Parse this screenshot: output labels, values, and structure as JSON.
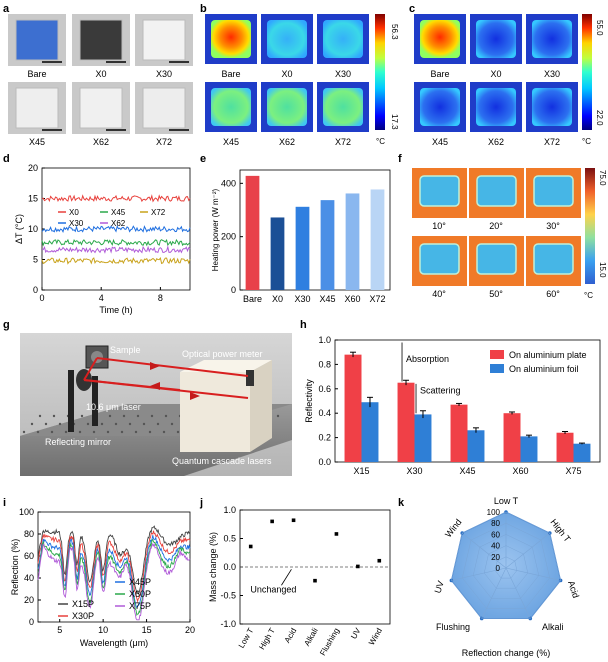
{
  "figure": {
    "panel_letters": [
      "a",
      "b",
      "c",
      "d",
      "e",
      "f",
      "g",
      "h",
      "i",
      "j",
      "k"
    ]
  },
  "panel_a": {
    "samples": [
      "Bare",
      "X0",
      "X30",
      "X45",
      "X62",
      "X72"
    ]
  },
  "panel_b": {
    "samples": [
      "Bare",
      "X0",
      "X30",
      "X45",
      "X62",
      "X72"
    ],
    "colorbar_max": "56.3",
    "colorbar_min": "17.3",
    "unit": "°C"
  },
  "panel_c": {
    "samples": [
      "Bare",
      "X0",
      "X30",
      "X45",
      "X62",
      "X72"
    ],
    "colorbar_max": "55.0",
    "colorbar_min": "22.0",
    "unit": "°C"
  },
  "panel_f": {
    "angles": [
      "10°",
      "20°",
      "30°",
      "40°",
      "50°",
      "60°"
    ],
    "colorbar_max": "75.0",
    "colorbar_min": "15.0",
    "unit": "°C"
  },
  "panel_g": {
    "labels": {
      "sample": "Sample",
      "meter": "Optical power meter",
      "laser": "10.6 μm laser",
      "mirror": "Reflecting mirror",
      "qcl": "Quantum cascade lasers"
    }
  },
  "chart_data": [
    {
      "panel": "d",
      "type": "line",
      "xlabel": "Time (h)",
      "ylabel": "ΔT (°C)",
      "xlim": [
        0,
        10
      ],
      "ylim": [
        0,
        20
      ],
      "xticks": [
        "0",
        "4",
        "8"
      ],
      "yticks": [
        "0",
        "5",
        "10",
        "15",
        "20"
      ],
      "series": [
        {
          "name": "X0",
          "level": 15.0,
          "color": "#e8413c"
        },
        {
          "name": "X30",
          "level": 10.0,
          "color": "#1f6fe0"
        },
        {
          "name": "X45",
          "level": 7.8,
          "color": "#2aa84a"
        },
        {
          "name": "X62",
          "level": 6.6,
          "color": "#b05bd8"
        },
        {
          "name": "X72",
          "level": 4.8,
          "color": "#c9a21a"
        }
      ]
    },
    {
      "panel": "e",
      "type": "bar",
      "xlabel": "",
      "ylabel": "Heating power (W m⁻²)",
      "ylim": [
        0,
        450
      ],
      "yticks": [
        "0",
        "200",
        "400"
      ],
      "categories": [
        "Bare",
        "X0",
        "X30",
        "X45",
        "X60",
        "X72"
      ],
      "values": [
        428,
        272,
        312,
        337,
        362,
        377
      ],
      "colors": [
        "#e8414a",
        "#1b4f96",
        "#2f7fe0",
        "#4b8fe6",
        "#8ab7ef",
        "#b9d5f5"
      ]
    },
    {
      "panel": "h",
      "type": "bar",
      "xlabel": "",
      "ylabel": "Reflectivity",
      "ylim": [
        0.0,
        1.0
      ],
      "yticks": [
        "0.0",
        "0.2",
        "0.4",
        "0.6",
        "0.8",
        "1.0"
      ],
      "categories": [
        "X15",
        "X30",
        "X45",
        "X60",
        "X75"
      ],
      "series": [
        {
          "name": "On aluminium plate",
          "values": [
            0.88,
            0.65,
            0.47,
            0.4,
            0.24
          ],
          "errors": [
            0.02,
            0.02,
            0.01,
            0.01,
            0.01
          ],
          "color": "#f04047"
        },
        {
          "name": "On aluminium foil",
          "values": [
            0.49,
            0.39,
            0.26,
            0.21,
            0.15
          ],
          "errors": [
            0.04,
            0.03,
            0.02,
            0.01,
            0.005
          ],
          "color": "#2f7fd6"
        }
      ],
      "annotations": [
        "Absorption",
        "Scattering"
      ]
    },
    {
      "panel": "i",
      "type": "line",
      "xlabel": "Wavelength (μm)",
      "ylabel": "Reflection (%)",
      "xlim": [
        2.5,
        20
      ],
      "ylim": [
        0,
        100
      ],
      "xticks": [
        "5",
        "10",
        "15",
        "20"
      ],
      "yticks": [
        "0",
        "20",
        "40",
        "60",
        "80",
        "100"
      ],
      "series": [
        {
          "name": "X15P",
          "offset": 0,
          "color": "#444444"
        },
        {
          "name": "X30P",
          "offset": -6,
          "color": "#e8413c"
        },
        {
          "name": "X45P",
          "offset": -12,
          "color": "#1f6fe0"
        },
        {
          "name": "X60P",
          "offset": -17,
          "color": "#2aa84a"
        },
        {
          "name": "X75P",
          "offset": -22,
          "color": "#b05bd8"
        }
      ]
    },
    {
      "panel": "j",
      "type": "scatter",
      "xlabel": "",
      "ylabel": "Mass change (%)",
      "ylim": [
        -1.0,
        1.0
      ],
      "yticks": [
        "-1.0",
        "-0.5",
        "0.0",
        "0.5",
        "1.0"
      ],
      "categories": [
        "Low T",
        "High T",
        "Acid",
        "Alkali",
        "Flushing",
        "UV",
        "Wind"
      ],
      "values": [
        0.36,
        0.8,
        0.82,
        -0.24,
        0.58,
        0.01,
        0.11
      ],
      "annotation": "Unchanged"
    },
    {
      "panel": "k",
      "type": "radar",
      "xlabel": "Reflection change (%)",
      "axes": [
        "Low T",
        "High T",
        "Acid",
        "Alkali",
        "Flushing",
        "UV",
        "Wind"
      ],
      "values": [
        100,
        100,
        100,
        100,
        100,
        100,
        100
      ],
      "ticks": [
        "0",
        "20",
        "40",
        "60",
        "80",
        "100"
      ]
    }
  ]
}
